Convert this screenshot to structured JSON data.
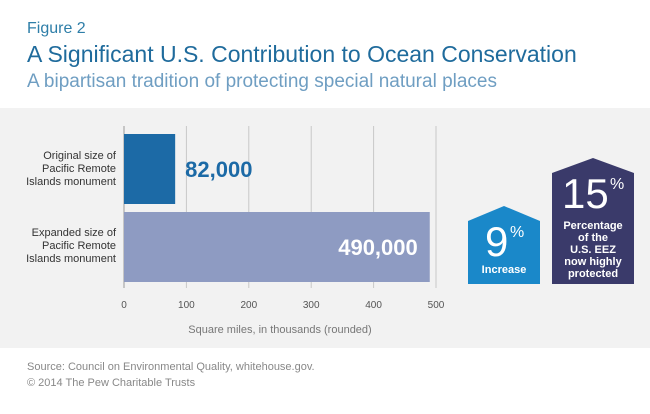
{
  "header": {
    "figure_label": "Figure 2",
    "title": "A Significant U.S. Contribution to Ocean Conservation",
    "subtitle": "A bipartisan tradition of protecting special natural places"
  },
  "chart_data": {
    "type": "bar",
    "orientation": "horizontal",
    "categories": [
      [
        "Original size of",
        "Pacific Remote",
        "Islands monument"
      ],
      [
        "Expanded size of",
        "Pacific Remote",
        "Islands monument"
      ]
    ],
    "values": [
      82,
      490
    ],
    "value_labels": [
      "82,000",
      "490,000"
    ],
    "xlabel": "Square miles, in thousands (rounded)",
    "xlim": [
      0,
      500
    ],
    "xticks": [
      0,
      100,
      200,
      300,
      400,
      500
    ],
    "grid": true,
    "colors": [
      "#1c6aa6",
      "#8e9bc2"
    ],
    "label_colors": [
      "#1c6aa6",
      "#ffffff"
    ]
  },
  "callouts": [
    {
      "number": "9",
      "unit": "%",
      "desc": [
        "Increase"
      ],
      "color": "#1a88c9"
    },
    {
      "number": "15",
      "unit": "%",
      "desc": [
        "Percentage",
        "of the",
        "U.S. EEZ",
        "now highly",
        "protected"
      ],
      "color": "#3a3a6a"
    }
  ],
  "footer": {
    "source": "Source: Council on Environmental Quality, whitehouse.gov.",
    "copyright": "© 2014 The Pew Charitable Trusts"
  }
}
